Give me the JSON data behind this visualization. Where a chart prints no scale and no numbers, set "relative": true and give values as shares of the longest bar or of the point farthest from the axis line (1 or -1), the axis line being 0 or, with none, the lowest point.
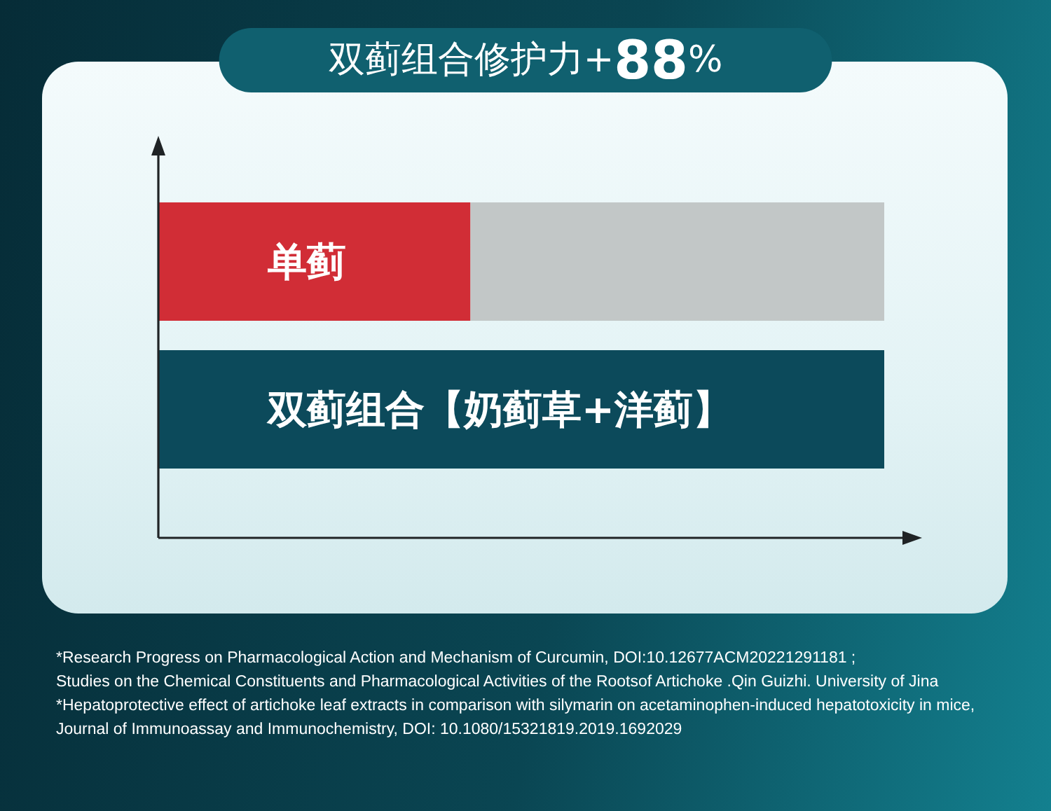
{
  "chart_data": {
    "type": "bar",
    "title": "双蓟组合修护力+88%",
    "orientation": "horizontal",
    "stacked": true,
    "relative": true,
    "tick_labels": "y",
    "categories": [
      "单蓟",
      "双蓟组合【奶蓟草+洋蓟】"
    ],
    "series": [
      {
        "colors": [
          "#d12d36",
          "#0c4a5b"
        ],
        "values": [
          0.43,
          1
        ]
      },
      {
        "color": "#c2c7c7",
        "values": [
          0.57,
          null
        ]
      }
    ],
    "annotations": [
      "*Research Progress on Pharmacological Action and Mechanism of Curcumin, DOI:10.12677ACM20221291181 ;",
      "Studies on the Chemical Constituents and Pharmacological Activities of the Rootsof Artichoke .Qin Guizhi. University of Jina",
      "*Hepatoprotective effect of artichoke leaf extracts in comparison with silymarin on acetaminophen-induced hepatotoxicity in mice,",
      "Journal of Immunoassay and Immunochemistry, DOI: 10.1080/15321819.2019.1692029"
    ]
  }
}
